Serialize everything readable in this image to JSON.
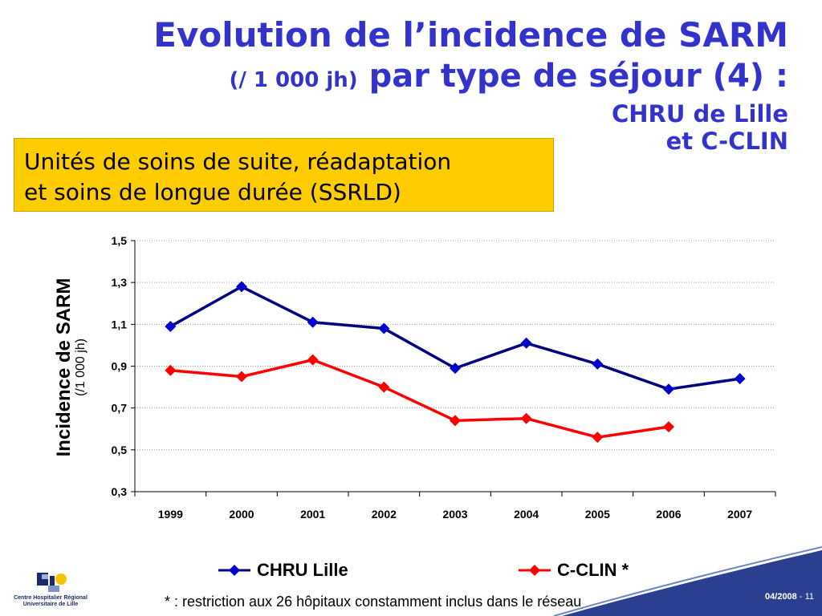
{
  "title": {
    "line1": "Evolution de l’incidence de SARM",
    "line2_unit": "(/ 1 000 jh)",
    "line2_main": "par type de séjour (4) :",
    "line3": "CHRU de Lille",
    "line4": "et C-CLIN"
  },
  "subtitle": {
    "line1": "Unités de soins de suite, réadaptation",
    "line2": "et soins de longue durée (SSRLD)"
  },
  "chart_data": {
    "type": "line",
    "categories": [
      "1999",
      "2000",
      "2001",
      "2002",
      "2003",
      "2004",
      "2005",
      "2006",
      "2007"
    ],
    "yticks": [
      "1,5",
      "1,3",
      "1,1",
      "0,9",
      "0,7",
      "0,5",
      "0,3"
    ],
    "ylim": [
      0.3,
      1.5
    ],
    "ylabel": "Incidence de SARM",
    "ylabel_sub": "(/1 000 jh)",
    "grid": true,
    "legend_position": "bottom",
    "series": [
      {
        "name": "CHRU Lille",
        "color": "#0000cc",
        "line_color": "#000080",
        "marker": "diamond",
        "values": [
          1.09,
          1.28,
          1.11,
          1.08,
          0.89,
          1.01,
          0.91,
          0.79,
          0.84
        ]
      },
      {
        "name": "C-CLIN *",
        "color": "#ff0000",
        "line_color": "#ff0000",
        "marker": "diamond",
        "values": [
          0.88,
          0.85,
          0.93,
          0.8,
          0.64,
          0.65,
          0.56,
          0.61,
          null
        ]
      }
    ]
  },
  "footnote": "* : restriction aux 26 hôpitaux constamment inclus dans le réseau",
  "logo": {
    "line1": "Centre Hospitalier Régional",
    "line2": "Universitaire de Lille"
  },
  "page": {
    "date": "04/2008",
    "separator": " - ",
    "number": "11"
  },
  "colors": {
    "title": "#3333cc",
    "subtitle_bg": "#ffcc00",
    "swoosh": "#2a3f8f"
  }
}
